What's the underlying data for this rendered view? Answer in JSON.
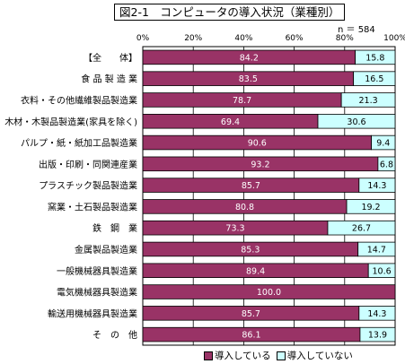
{
  "title": "図2-1　コンピュータの導入状況（業種別）",
  "sample_note": "n ＝ 584",
  "colors": {
    "introduced": "#993366",
    "not_introduced": "#ccffff"
  },
  "legend": {
    "introduced": "導入している",
    "not_introduced": "導入していない"
  },
  "chart_data": {
    "type": "bar",
    "orientation": "horizontal",
    "stacked": "percent",
    "xlim": [
      0,
      100
    ],
    "x_ticks": [
      "0%",
      "20%",
      "40%",
      "60%",
      "80%",
      "100%"
    ],
    "grid": true,
    "legend_position": "bottom-right",
    "categories": [
      "【全　　体】",
      "食 品 製 造 業",
      "衣料・その他繊維製品製造業",
      "木材・木製品製造業(家具を除く)",
      "パルプ・紙・紙加工品製造業",
      "出版・印刷・同関連産業",
      "プラスチック製品製造業",
      "窯業・土石製品製造業",
      "鉄　鋼　業",
      "金属製品製造業",
      "一般機械器具製造業",
      "電気機械器具製造業",
      "輸送用機械器具製造業",
      "そ　の　他"
    ],
    "series": [
      {
        "name": "導入している",
        "values": [
          "84.2",
          "83.5",
          "78.7",
          "69.4",
          "90.6",
          "93.2",
          "85.7",
          "80.8",
          "73.3",
          "85.3",
          "89.4",
          "100.0",
          "85.7",
          "86.1"
        ]
      },
      {
        "name": "導入していない",
        "values": [
          "15.8",
          "16.5",
          "21.3",
          "30.6",
          "9.4",
          "6.8",
          "14.3",
          "19.2",
          "26.7",
          "14.7",
          "10.6",
          "",
          "14.3",
          "13.9"
        ]
      }
    ]
  }
}
